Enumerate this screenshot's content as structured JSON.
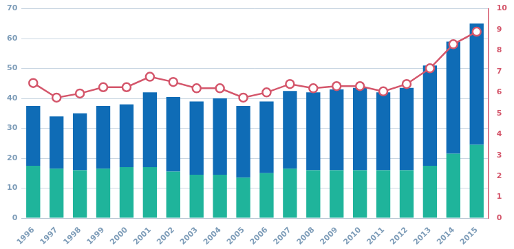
{
  "chart_data": {
    "type": "bar",
    "stacked": true,
    "grid": true,
    "categories": [
      "1996",
      "1997",
      "1998",
      "1999",
      "2000",
      "2001",
      "2002",
      "2003",
      "2004",
      "2005",
      "2006",
      "2007",
      "2008",
      "2009",
      "2010",
      "2011",
      "2012",
      "2013",
      "2014",
      "2015"
    ],
    "series": [
      {
        "type": "bar",
        "color": "#1fb49b",
        "values": [
          17.5,
          16.5,
          16,
          16.5,
          17,
          17,
          15.5,
          14.5,
          14.5,
          13.5,
          15,
          16.5,
          16,
          16,
          16,
          16,
          16,
          17.5,
          21.5,
          24.5
        ]
      },
      {
        "type": "bar",
        "color": "#0f6cb6",
        "values": [
          20,
          17.5,
          19,
          21,
          21,
          25,
          25,
          24.5,
          25.5,
          24,
          24,
          26,
          26,
          27,
          27.5,
          26,
          27.5,
          33.5,
          37.5,
          40.5
        ]
      },
      {
        "type": "line",
        "axis": "y2",
        "color": "#d4566b",
        "marker": "circle",
        "values": [
          6.45,
          5.75,
          5.95,
          6.25,
          6.25,
          6.75,
          6.5,
          6.2,
          6.2,
          5.75,
          6.0,
          6.4,
          6.2,
          6.3,
          6.3,
          6.05,
          6.4,
          7.15,
          8.3,
          8.9
        ]
      }
    ],
    "ylim": [
      0,
      70
    ],
    "yticks": [
      0,
      10,
      20,
      30,
      40,
      50,
      60,
      70
    ],
    "y2lim": [
      0,
      10
    ],
    "y2ticks": [
      0,
      1,
      2,
      3,
      4,
      5,
      6,
      7,
      8,
      9,
      10
    ]
  }
}
